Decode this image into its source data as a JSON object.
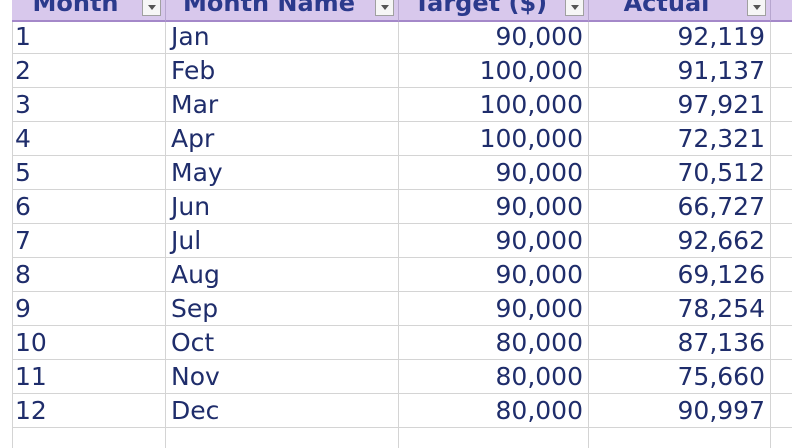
{
  "table": {
    "headers": [
      {
        "label": "Month"
      },
      {
        "label": "Month Name"
      },
      {
        "label": "Target ($)"
      },
      {
        "label": "Actual"
      }
    ],
    "rows": [
      {
        "month": "1",
        "name": "Jan",
        "target": "90,000",
        "actual": "92,119"
      },
      {
        "month": "2",
        "name": "Feb",
        "target": "100,000",
        "actual": "91,137"
      },
      {
        "month": "3",
        "name": "Mar",
        "target": "100,000",
        "actual": "97,921"
      },
      {
        "month": "4",
        "name": "Apr",
        "target": "100,000",
        "actual": "72,321"
      },
      {
        "month": "5",
        "name": "May",
        "target": "90,000",
        "actual": "70,512"
      },
      {
        "month": "6",
        "name": "Jun",
        "target": "90,000",
        "actual": "66,727"
      },
      {
        "month": "7",
        "name": "Jul",
        "target": "90,000",
        "actual": "92,662"
      },
      {
        "month": "8",
        "name": "Aug",
        "target": "90,000",
        "actual": "69,126"
      },
      {
        "month": "9",
        "name": "Sep",
        "target": "90,000",
        "actual": "78,254"
      },
      {
        "month": "10",
        "name": "Oct",
        "target": "80,000",
        "actual": "87,136"
      },
      {
        "month": "11",
        "name": "Nov",
        "target": "80,000",
        "actual": "75,660"
      },
      {
        "month": "12",
        "name": "Dec",
        "target": "80,000",
        "actual": "90,997"
      }
    ]
  },
  "colors": {
    "header_bg": "#d8c8ec",
    "header_text": "#2b3a8c",
    "cell_text": "#1f2d6b",
    "gridline": "#d4d4d4"
  }
}
